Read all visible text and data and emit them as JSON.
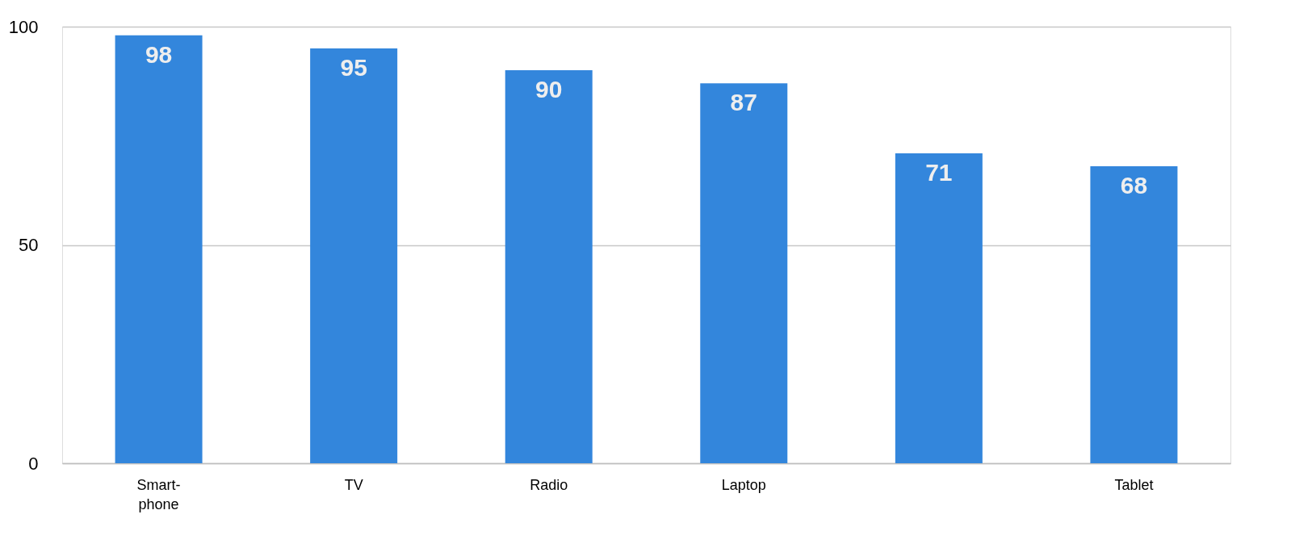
{
  "chart_data": {
    "type": "bar",
    "categories": [
      "Smart-phone",
      "TV",
      "Radio",
      "Laptop",
      null,
      "Tablet"
    ],
    "values": [
      98,
      95,
      90,
      87,
      71,
      68
    ],
    "color": "#3386dc",
    "ylim": [
      0,
      100
    ],
    "yticks": [
      0,
      50,
      100
    ],
    "grid": "y",
    "data_labels": true
  }
}
